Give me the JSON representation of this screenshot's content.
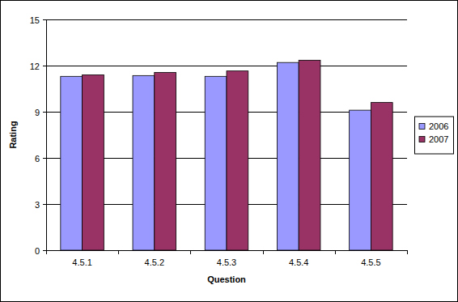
{
  "chart_data": {
    "type": "bar",
    "x_label": "Question",
    "y_label": "Rating",
    "categories": [
      "4.5.1",
      "4.5.2",
      "4.5.3",
      "4.5.4",
      "4.5.5"
    ],
    "series": [
      {
        "name": "2006",
        "color": "#9999ff",
        "values": [
          11.3,
          11.35,
          11.3,
          12.2,
          9.1
        ]
      },
      {
        "name": "2007",
        "color": "#993366",
        "values": [
          11.4,
          11.55,
          11.65,
          12.35,
          9.6
        ]
      }
    ],
    "ylim": [
      0,
      15
    ],
    "yticks": [
      0,
      3,
      6,
      9,
      12,
      15
    ],
    "grid": true,
    "legend": "right"
  }
}
